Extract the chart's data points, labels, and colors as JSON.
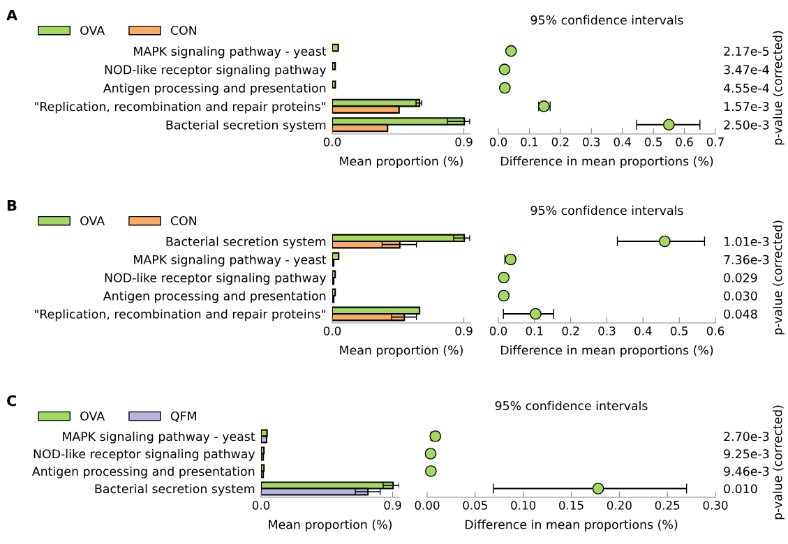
{
  "chart_data": [
    {
      "type": "bar",
      "orientation": "horizontal",
      "xlabel": "Mean proportion (%)",
      "annotations": [
        "A"
      ],
      "legend": "top left",
      "categories": [
        "MAPK signaling pathway - yeast",
        "NOD-like receptor signaling pathway",
        "Antigen processing and presentation",
        "\"Replication, recombination and repair proteins\"",
        "Bacterial secretion system"
      ],
      "series": [
        {
          "name": "OVA",
          "color": "#a5d85f",
          "values": [
            0.041,
            0.02,
            0.021,
            0.597,
            0.903
          ],
          "errors": [
            null,
            null,
            null,
            [
              0.573,
              0.612
            ],
            [
              0.787,
              0.94
            ]
          ]
        },
        {
          "name": "CON",
          "color": "#fbac63",
          "values": [
            null,
            null,
            null,
            0.457,
            0.378
          ]
        }
      ],
      "xlim": [
        0,
        0.945
      ],
      "xticks": [
        {
          "value": 0,
          "label": "0.0"
        },
        0.9
      ]
    },
    {
      "type": "scatter",
      "orientation": "horizontal",
      "title": "95% confidence intervals",
      "xlabel": "Difference in mean proportions (%)",
      "y2label": "p-value (corrected)",
      "marker": "circle",
      "categories": [
        "2.17e-5",
        "3.47e-4",
        "4.55e-4",
        "1.57e-3",
        "2.50e-3"
      ],
      "series": [
        {
          "color": "#a5d85f",
          "values": [
            0.041,
            0.02,
            0.021,
            0.147,
            0.55
          ],
          "errors": [
            null,
            null,
            null,
            [
              0.13,
              0.167
            ],
            [
              0.446,
              0.65
            ]
          ]
        }
      ],
      "xlim": [
        0,
        0.7
      ],
      "xticks": [
        {
          "value": 0,
          "label": "0.0"
        },
        0.1,
        0.2,
        0.3,
        0.4,
        0.5,
        0.6,
        0.7
      ]
    },
    {
      "type": "bar",
      "orientation": "horizontal",
      "xlabel": "Mean proportion (%)",
      "annotations": [
        "B"
      ],
      "legend": "top left",
      "categories": [
        "Bacterial secretion system",
        "MAPK signaling pathway - yeast",
        "NOD-like receptor signaling pathway",
        "Antigen processing and presentation",
        "\"Replication, recombination and repair proteins\""
      ],
      "series": [
        {
          "name": "OVA",
          "color": "#a5d85f",
          "values": [
            0.903,
            0.044,
            0.02,
            0.02,
            0.597
          ],
          "errors": [
            [
              0.83,
              0.94
            ],
            null,
            null,
            null,
            null
          ]
        },
        {
          "name": "CON",
          "color": "#fbac63",
          "values": [
            0.462,
            0.01,
            0.01,
            0.01,
            0.493
          ],
          "errors": [
            [
              0.341,
              0.576
            ],
            null,
            null,
            null,
            [
              0.406,
              0.576
            ]
          ]
        }
      ],
      "xlim": [
        0,
        0.945
      ],
      "xticks": [
        {
          "value": 0,
          "label": "0.0"
        },
        0.9
      ]
    },
    {
      "type": "scatter",
      "orientation": "horizontal",
      "title": "95% confidence intervals",
      "xlabel": "Difference in mean proportions (%)",
      "y2label": "p-value (corrected)",
      "marker": "circle",
      "categories": [
        "1.01e-3",
        "7.36e-3",
        "0.029",
        "0.030",
        "0.048"
      ],
      "series": [
        {
          "color": "#a5d85f",
          "values": [
            0.46,
            0.034,
            0.015,
            0.015,
            0.103
          ],
          "errors": [
            [
              0.329,
              0.57
            ],
            [
              0.018,
              0.045
            ],
            null,
            null,
            [
              0.014,
              0.153
            ]
          ]
        }
      ],
      "xlim": [
        0,
        0.6
      ],
      "xticks": [
        {
          "value": 0,
          "label": "0.0"
        },
        0.1,
        0.2,
        0.3,
        0.4,
        0.5,
        0.6
      ]
    },
    {
      "type": "bar",
      "orientation": "horizontal",
      "xlabel": "Mean proportion (%)",
      "annotations": [
        "C"
      ],
      "legend": "top left",
      "categories": [
        "MAPK signaling pathway - yeast",
        "NOD-like receptor signaling pathway",
        "Antigen processing and presentation",
        "Bacterial secretion system"
      ],
      "series": [
        {
          "name": "OVA",
          "color": "#a5d85f",
          "values": [
            0.041,
            0.02,
            0.02,
            0.903
          ],
          "errors": [
            null,
            null,
            null,
            [
              0.835,
              0.945
            ]
          ]
        },
        {
          "name": "QFM",
          "color": "#b8b6e3",
          "values": [
            0.038,
            0.015,
            0.015,
            0.731
          ],
          "errors": [
            null,
            null,
            null,
            [
              0.645,
              0.815
            ]
          ]
        }
      ],
      "xlim": [
        0,
        0.945
      ],
      "xticks": [
        {
          "value": 0,
          "label": "0.0"
        },
        0.9
      ]
    },
    {
      "type": "scatter",
      "orientation": "horizontal",
      "title": "95% confidence intervals",
      "xlabel": "Difference in mean proportions (%)",
      "y2label": "p-value (corrected)",
      "marker": "circle",
      "categories": [
        "2.70e-3",
        "9.25e-3",
        "9.46e-3",
        "0.010"
      ],
      "series": [
        {
          "color": "#a5d85f",
          "values": [
            0.0085,
            0.0036,
            0.0039,
            0.178
          ],
          "errors": [
            [
              0.004,
              0.012
            ],
            null,
            null,
            [
              0.069,
              0.27
            ]
          ]
        }
      ],
      "xlim": [
        0,
        0.3
      ],
      "xticks": [
        {
          "value": 0,
          "label": "0.00"
        },
        {
          "value": 0.05,
          "label": "0.05"
        },
        {
          "value": 0.1,
          "label": "0.10"
        },
        {
          "value": 0.15,
          "label": "0.15"
        },
        {
          "value": 0.2,
          "label": "0.20"
        },
        {
          "value": 0.25,
          "label": "0.25"
        },
        {
          "value": 0.3,
          "label": "0.30"
        }
      ]
    }
  ]
}
